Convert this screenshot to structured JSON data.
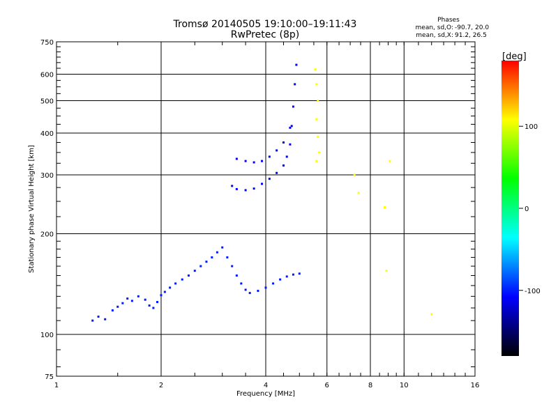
{
  "chart_data": {
    "type": "scatter",
    "title": "Tromsø 20140505 19:10:00–19:11:43",
    "subtitle": "RwPretec (8p)",
    "xlabel": "Frequency [MHz]",
    "ylabel": "Stationary phase Virtual Height [km]",
    "x_scale": "log",
    "y_scale": "log",
    "xlim": [
      1,
      16
    ],
    "ylim": [
      75,
      750
    ],
    "x_ticks": [
      "1",
      "2",
      "4",
      "6",
      "8",
      "10",
      "16"
    ],
    "y_ticks": [
      "75",
      "100",
      "200",
      "300",
      "400",
      "500",
      "600",
      "750"
    ],
    "grid": true,
    "stats": {
      "heading": "Phases",
      "o_label": "mean, sd,O:",
      "o_values": "-90.7, 20.0",
      "x_label": "mean, sd,X:",
      "x_values": " 91.2, 26.5"
    },
    "colorbar": {
      "label": "[deg]",
      "range": [
        -180,
        180
      ],
      "ticks": [
        "100",
        "0",
        "-100"
      ],
      "colors": [
        "#ff0000",
        "#ffff00",
        "#00ff00",
        "#00ffff",
        "#0000ff",
        "#000000"
      ]
    },
    "series": [
      {
        "color_phase": -95,
        "points": [
          [
            1.27,
            110
          ],
          [
            1.32,
            113
          ],
          [
            1.38,
            111
          ],
          [
            1.45,
            118
          ],
          [
            1.5,
            121
          ],
          [
            1.55,
            124
          ],
          [
            1.6,
            128
          ],
          [
            1.65,
            126
          ],
          [
            1.72,
            130
          ],
          [
            1.8,
            127
          ],
          [
            1.85,
            122
          ],
          [
            1.9,
            120
          ],
          [
            1.95,
            125
          ],
          [
            2.0,
            131
          ],
          [
            2.05,
            134
          ],
          [
            2.12,
            138
          ],
          [
            2.2,
            142
          ],
          [
            2.3,
            146
          ],
          [
            2.4,
            150
          ],
          [
            2.5,
            155
          ],
          [
            2.6,
            160
          ],
          [
            2.7,
            165
          ],
          [
            2.8,
            170
          ],
          [
            2.9,
            176
          ],
          [
            3.0,
            182
          ],
          [
            3.1,
            170
          ],
          [
            3.2,
            160
          ],
          [
            3.3,
            150
          ],
          [
            3.4,
            142
          ],
          [
            3.5,
            136
          ],
          [
            3.6,
            133
          ],
          [
            3.8,
            135
          ],
          [
            4.0,
            138
          ],
          [
            4.2,
            142
          ],
          [
            4.4,
            146
          ],
          [
            4.6,
            149
          ],
          [
            4.8,
            151
          ],
          [
            5.0,
            152
          ]
        ]
      },
      {
        "color_phase": -100,
        "points": [
          [
            3.2,
            278
          ],
          [
            3.3,
            272
          ],
          [
            3.5,
            270
          ],
          [
            3.7,
            273
          ],
          [
            3.9,
            282
          ],
          [
            4.1,
            292
          ],
          [
            4.3,
            304
          ],
          [
            4.5,
            320
          ],
          [
            4.6,
            340
          ],
          [
            4.7,
            370
          ],
          [
            4.75,
            420
          ],
          [
            4.8,
            480
          ],
          [
            4.85,
            560
          ],
          [
            4.9,
            640
          ],
          [
            3.3,
            335
          ],
          [
            3.5,
            330
          ],
          [
            3.7,
            327
          ],
          [
            3.9,
            330
          ],
          [
            4.1,
            340
          ],
          [
            4.3,
            355
          ],
          [
            4.5,
            375
          ],
          [
            4.7,
            415
          ]
        ]
      },
      {
        "color_phase": 100,
        "points": [
          [
            5.55,
            620
          ],
          [
            5.6,
            560
          ],
          [
            5.65,
            500
          ],
          [
            5.6,
            440
          ],
          [
            5.65,
            390
          ],
          [
            5.7,
            350
          ],
          [
            5.6,
            330
          ],
          [
            7.2,
            300
          ],
          [
            7.4,
            265
          ],
          [
            8.8,
            240
          ],
          [
            8.9,
            155
          ],
          [
            9.1,
            330
          ],
          [
            12.0,
            115
          ]
        ]
      }
    ]
  }
}
